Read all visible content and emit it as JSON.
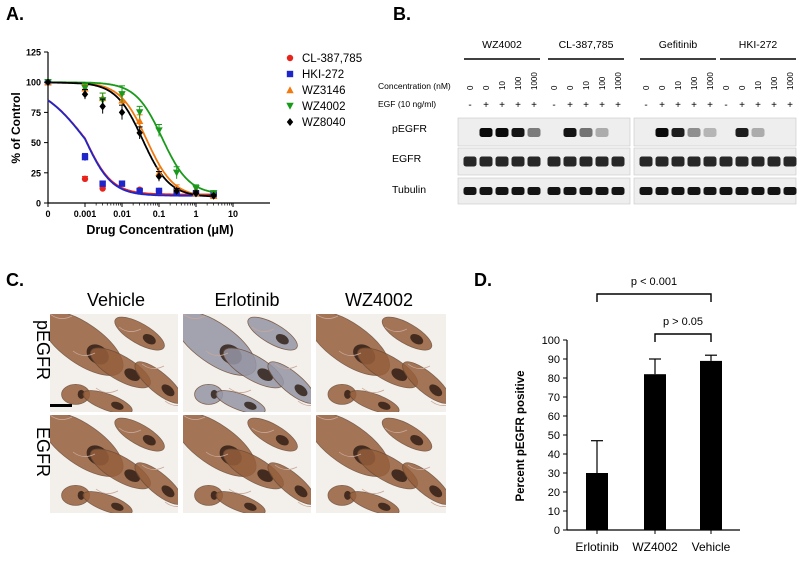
{
  "panels": {
    "a": {
      "letter": "A."
    },
    "b": {
      "letter": "B."
    },
    "c": {
      "letter": "C."
    },
    "d": {
      "letter": "D."
    }
  },
  "panel_a": {
    "xlabel": "Drug Concentration (μM)",
    "ylabel": "% of Control",
    "y_ticks": [
      "0",
      "25",
      "50",
      "75",
      "100",
      "125"
    ],
    "x_ticks": [
      "0",
      "0.001",
      "0.01",
      "0.1",
      "1",
      "10"
    ]
  },
  "panel_b": {
    "groups": [
      "WZ4002",
      "CL-387,785",
      "Gefitinib",
      "HKI-272"
    ],
    "row_labels": {
      "concentration": "Concentration (nM)",
      "egf": "EGF (10 ng/ml)",
      "pegfr": "pEGFR",
      "egfr": "EGFR",
      "tubulin": "Tubulin"
    },
    "concentrations": [
      "0",
      "0",
      "10",
      "100",
      "1000"
    ],
    "egf_signs": [
      "-",
      "+",
      "+",
      "+",
      "+"
    ],
    "pegfr_intensity": {
      "WZ4002": [
        0,
        1,
        1,
        0.95,
        0.4
      ],
      "CL-387,785": [
        0,
        0.95,
        0.45,
        0.15,
        0
      ],
      "Gefitinib": [
        0,
        1,
        0.9,
        0.3,
        0.1
      ],
      "HKI-272": [
        0,
        0.9,
        0.15,
        0,
        0
      ]
    }
  },
  "panel_c": {
    "columns": [
      "Vehicle",
      "Erlotinib",
      "WZ4002"
    ],
    "rows": [
      "pEGFR",
      "EGFR"
    ]
  },
  "colors": {
    "CL-387,785": "#e8231c",
    "HKI-272": "#1f26c9",
    "WZ3146": "#f07a10",
    "WZ4002": "#1a9a1a",
    "WZ8040": "#000000"
  },
  "chart_data": [
    {
      "type": "line",
      "panel": "A",
      "xlabel": "Drug Concentration (μM)",
      "ylabel": "% of Control",
      "x_scale": "log (with 0 at left)",
      "xlim": [
        0,
        10
      ],
      "ylim": [
        0,
        125
      ],
      "legend_position": "right",
      "series": [
        {
          "name": "CL-387,785",
          "marker": "circle",
          "x": [
            0,
            0.001,
            0.003,
            0.03,
            0.1,
            0.3,
            1,
            3
          ],
          "y": [
            100,
            20,
            12,
            11,
            10,
            10,
            9,
            8
          ],
          "err": [
            0,
            2,
            2,
            1,
            1,
            1,
            1,
            1
          ]
        },
        {
          "name": "HKI-272",
          "marker": "square",
          "x": [
            0,
            0.001,
            0.003,
            0.01,
            0.03,
            0.1,
            0.3,
            1,
            3
          ],
          "y": [
            100,
            38,
            16,
            16,
            10,
            10,
            9,
            8,
            7
          ],
          "err": [
            0,
            3,
            2,
            2,
            1,
            1,
            1,
            1,
            1
          ]
        },
        {
          "name": "WZ3146",
          "marker": "triangle",
          "x": [
            0,
            0.001,
            0.003,
            0.01,
            0.03,
            0.1,
            0.3,
            1,
            3
          ],
          "y": [
            100,
            95,
            87,
            85,
            68,
            25,
            12,
            8,
            6
          ],
          "err": [
            0,
            3,
            4,
            5,
            5,
            4,
            3,
            2,
            1
          ]
        },
        {
          "name": "WZ4002",
          "marker": "triangle-down",
          "x": [
            0,
            0.001,
            0.003,
            0.01,
            0.03,
            0.1,
            0.3,
            1,
            3
          ],
          "y": [
            100,
            95,
            85,
            90,
            75,
            60,
            25,
            12,
            8
          ],
          "err": [
            0,
            4,
            6,
            7,
            5,
            5,
            5,
            3,
            2
          ]
        },
        {
          "name": "WZ8040",
          "marker": "diamond",
          "x": [
            0,
            0.001,
            0.003,
            0.01,
            0.03,
            0.1,
            0.3,
            1,
            3
          ],
          "y": [
            100,
            90,
            80,
            75,
            58,
            22,
            10,
            8,
            6
          ],
          "err": [
            0,
            4,
            6,
            6,
            5,
            4,
            2,
            2,
            1
          ]
        }
      ]
    },
    {
      "type": "bar",
      "panel": "D",
      "ylabel": "Percent pEGFR positive",
      "categories": [
        "Erlotinib",
        "WZ4002",
        "Vehicle"
      ],
      "values": [
        30,
        82,
        89
      ],
      "errors": [
        17,
        8,
        3
      ],
      "ylim": [
        0,
        100
      ],
      "y_ticks": [
        0,
        10,
        20,
        30,
        40,
        50,
        60,
        70,
        80,
        90,
        100
      ],
      "annotations": [
        {
          "label": "p < 0.001",
          "from": "Erlotinib",
          "to": "Vehicle"
        },
        {
          "label": "p > 0.05",
          "from": "WZ4002",
          "to": "Vehicle"
        }
      ]
    }
  ]
}
